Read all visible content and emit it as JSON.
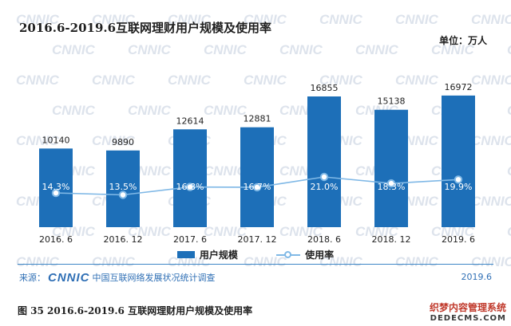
{
  "header": {
    "title": "2016.6-2019.6互联网理财用户规模及使用率",
    "unit": "单位：万人"
  },
  "watermark_text": "CNNIC",
  "chart_data": {
    "type": "bar",
    "categories": [
      "2016. 6",
      "2016. 12",
      "2017. 6",
      "2017. 12",
      "2018. 6",
      "2018. 12",
      "2019. 6"
    ],
    "series": [
      {
        "name": "用户规模",
        "type": "bar",
        "values": [
          10140,
          9890,
          12614,
          12881,
          16855,
          15138,
          16972
        ],
        "labels": [
          "10140",
          "9890",
          "12614",
          "12881",
          "16855",
          "15138",
          "16972"
        ],
        "color": "#1d6fb8"
      },
      {
        "name": "使用率",
        "type": "line",
        "values": [
          14.3,
          13.5,
          16.8,
          16.7,
          21.0,
          18.3,
          19.9
        ],
        "labels": [
          "14.3%",
          "13.5%",
          "16.8%",
          "16.7%",
          "21.0%",
          "18.3%",
          "19.9%"
        ],
        "color": "#7fb8e6"
      }
    ],
    "ylabel": "单位：万人",
    "ylim": [
      0,
      18500
    ],
    "rate_ylim": [
      0,
      60
    ],
    "grid": false,
    "legend": "bottom"
  },
  "legend": {
    "bar_label": "用户规模",
    "line_label": "使用率"
  },
  "footer": {
    "source_prefix": "来源：",
    "source_logo": "CNNIC",
    "source_text": "中国互联网络发展状况统计调查",
    "year": "2019.6"
  },
  "caption": "图 35   2016.6-2019.6 互联网理财用户规模及使用率",
  "corner_mark": {
    "cn": "织梦内容管理系统",
    "en": "DEDECMS.COM"
  },
  "colors": {
    "bar": "#1d6fb8",
    "line": "#7fb8e6",
    "accent": "#2f6fb5"
  }
}
